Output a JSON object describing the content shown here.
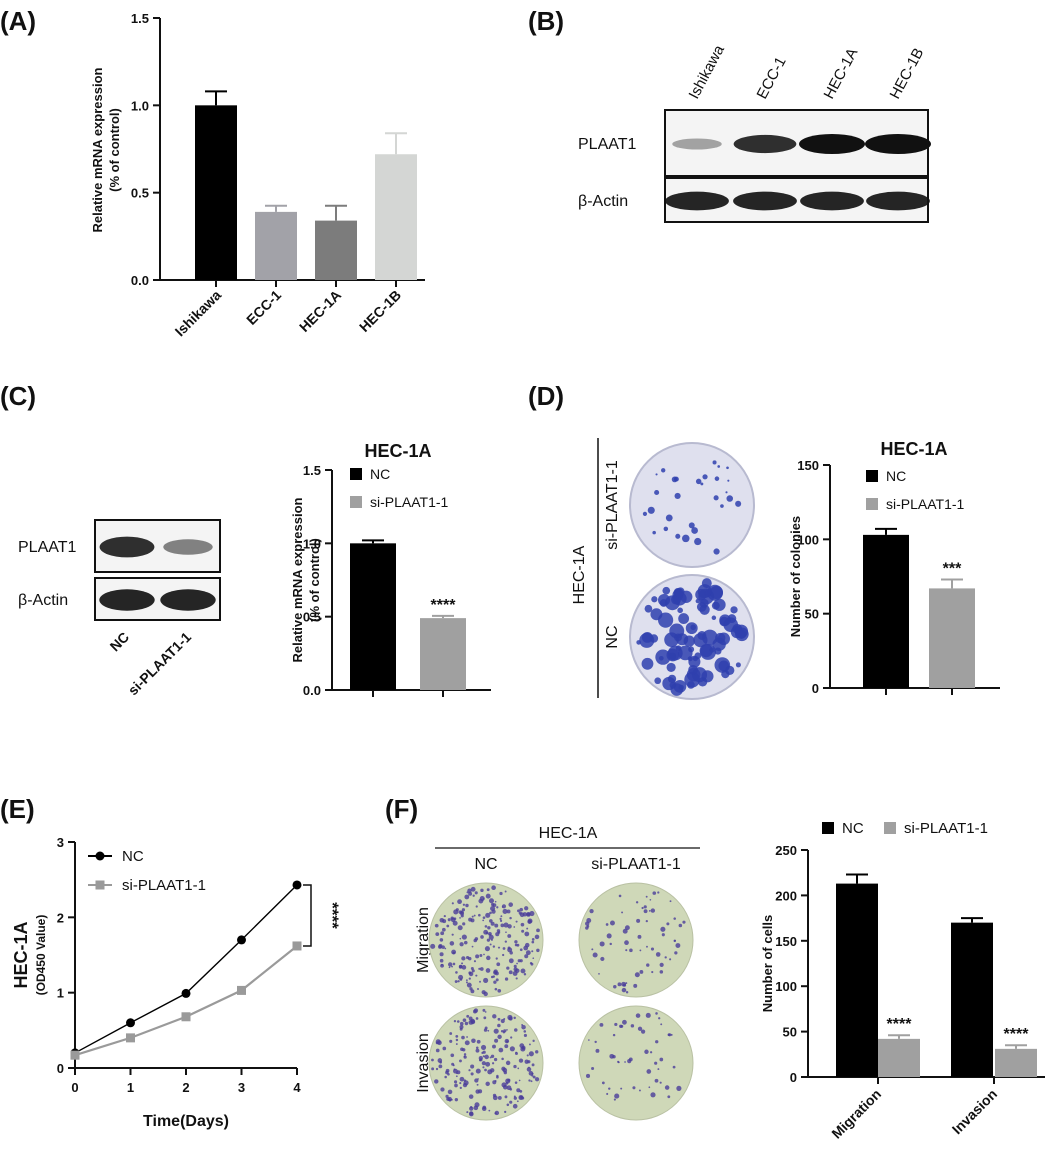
{
  "panel_labels": [
    "(A)",
    "(B)",
    "(C)",
    "(D)",
    "(E)",
    "(F)"
  ],
  "colors": {
    "black": "#000000",
    "gray1": "#a2a2a8",
    "gray2": "#7c7c7c",
    "gray3": "#d4d6d4",
    "si_gray": "#a0a0a0",
    "crystal_violet": "#2f3fae"
  },
  "chart_data": [
    {
      "id": "A",
      "type": "bar",
      "categories": [
        "Ishikawa",
        "ECC-1",
        "HEC-1A",
        "HEC-1B"
      ],
      "values": [
        1.0,
        0.39,
        0.34,
        0.72
      ],
      "errors": [
        0.08,
        0.035,
        0.085,
        0.12
      ],
      "colors": [
        "#000000",
        "#a2a2a8",
        "#7c7c7c",
        "#d4d6d4"
      ],
      "ylabel": [
        "Relative mRNA expression",
        "(% of control)"
      ],
      "ylim": [
        0,
        1.5
      ],
      "yticks": [
        "0.0",
        "0.5",
        "1.0",
        "1.5"
      ]
    },
    {
      "id": "C",
      "type": "bar",
      "title": "HEC-1A",
      "categories": [
        "NC",
        "si-PLAAT1-1"
      ],
      "values": [
        1.0,
        0.49
      ],
      "errors": [
        0.02,
        0.015
      ],
      "colors": [
        "#000000",
        "#a0a0a0"
      ],
      "annotations": [
        "",
        "****"
      ],
      "ylabel": [
        "Relative mRNA expression",
        "(% of control)"
      ],
      "ylim": [
        0,
        1.5
      ],
      "yticks": [
        "0.0",
        "0.5",
        "1.0",
        "1.5"
      ],
      "legend": [
        "NC",
        "si-PLAAT1-1"
      ]
    },
    {
      "id": "D",
      "type": "bar",
      "title": "HEC-1A",
      "categories": [
        "NC",
        "si-PLAAT1-1"
      ],
      "values": [
        103,
        67
      ],
      "errors": [
        4,
        6
      ],
      "colors": [
        "#000000",
        "#a0a0a0"
      ],
      "annotations": [
        "",
        "***"
      ],
      "ylabel": [
        "Number of colonies"
      ],
      "ylim": [
        0,
        150
      ],
      "yticks": [
        "0",
        "50",
        "100",
        "150"
      ],
      "legend": [
        "NC",
        "si-PLAAT1-1"
      ]
    },
    {
      "id": "E",
      "type": "line",
      "x": [
        0,
        1,
        2,
        3,
        4
      ],
      "series": [
        {
          "name": "NC",
          "values": [
            0.2,
            0.6,
            0.99,
            1.7,
            2.43
          ],
          "color": "#000000",
          "marker": "circle"
        },
        {
          "name": "si-PLAAT1-1",
          "values": [
            0.17,
            0.4,
            0.68,
            1.03,
            1.62
          ],
          "color": "#9a9a9a",
          "marker": "square"
        }
      ],
      "xlabel": "Time(Days)",
      "ylabel": [
        "HEC-1A",
        "(OD450 Value)"
      ],
      "xlim": [
        0,
        4
      ],
      "ylim": [
        0,
        3
      ],
      "yticks": [
        "0",
        "1",
        "2",
        "3"
      ],
      "xticks": [
        "0",
        "1",
        "2",
        "3",
        "4"
      ],
      "significance": "****"
    },
    {
      "id": "F",
      "type": "bar",
      "categories": [
        "Migration",
        "Invasion"
      ],
      "series": [
        {
          "name": "NC",
          "values": [
            213,
            170
          ],
          "errors": [
            10,
            5
          ],
          "color": "#000000"
        },
        {
          "name": "si-PLAAT1-1",
          "values": [
            42,
            31
          ],
          "errors": [
            4,
            4
          ],
          "color": "#a0a0a0",
          "annotations": [
            "****",
            "****"
          ]
        }
      ],
      "ylabel": [
        "Number of cells"
      ],
      "ylim": [
        0,
        250
      ],
      "yticks": [
        "0",
        "50",
        "100",
        "150",
        "200",
        "250"
      ]
    }
  ],
  "blot_B": {
    "lanes": [
      "Ishikawa",
      "ECC-1",
      "HEC-1A",
      "HEC-1B"
    ],
    "rows": [
      {
        "label": "PLAAT1",
        "intensities": [
          0.25,
          0.85,
          1.0,
          1.0
        ]
      },
      {
        "label": "β-Actin",
        "intensities": [
          0.9,
          0.9,
          0.9,
          0.9
        ]
      }
    ]
  },
  "blot_C": {
    "lanes": [
      "NC",
      "si-PLAAT1-1"
    ],
    "rows": [
      {
        "label": "PLAAT1",
        "intensities": [
          0.9,
          0.45
        ]
      },
      {
        "label": "β-Actin",
        "intensities": [
          0.95,
          0.95
        ]
      }
    ]
  },
  "colony_D": {
    "group": "HEC-1A",
    "rows": [
      {
        "label": "si-PLAAT1-1",
        "density": 0.25
      },
      {
        "label": "NC",
        "density": 0.8
      }
    ]
  },
  "transwell_F": {
    "group": "HEC-1A",
    "columns": [
      "NC",
      "si-PLAAT1-1"
    ],
    "rows": [
      "Migration",
      "Invasion"
    ],
    "density": [
      [
        0.85,
        0.25
      ],
      [
        0.8,
        0.2
      ]
    ]
  }
}
